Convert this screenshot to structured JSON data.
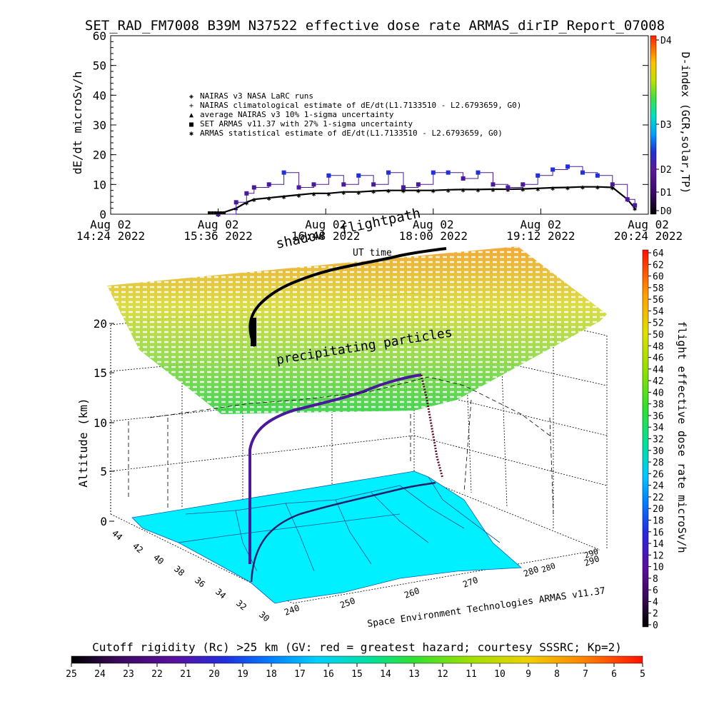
{
  "header": {
    "title": "SET_RAD_FM7008   B39M N37522 effective dose rate ARMAS_dirIP_Report_07008"
  },
  "top_panel": {
    "ylabel": "dE/dt microSv/h",
    "right_label": "D-index (GCR,solar,TP)",
    "yticks": [
      "0",
      "10",
      "20",
      "30",
      "40",
      "50",
      "60"
    ],
    "dindex_ticks": [
      "D0",
      "D1",
      "D2",
      "D3",
      "D4"
    ],
    "legend": [
      {
        "symbol": "diamond",
        "text": "NAIRAS v3 NASA LaRC runs"
      },
      {
        "symbol": "plus",
        "text": "NAIRAS climatological estimate of dE/dt(L1.7133510 - L2.6793659, G0)"
      },
      {
        "symbol": "triangle",
        "text": "average NAIRAS v3 10% 1-sigma uncertainty"
      },
      {
        "symbol": "square",
        "text": "SET ARMAS v11.37 with 27% 1-sigma uncertainty"
      },
      {
        "symbol": "asterisk",
        "text": "ARMAS statistical estimate of dE/dt(L1.7133510 - L2.6793659, G0)"
      }
    ],
    "xticks": [
      {
        "l1": "Aug 02",
        "l2": "14:24 2022"
      },
      {
        "l1": "Aug 02",
        "l2": "15:36 2022"
      },
      {
        "l1": "Aug 02",
        "l2": "16:48 2022"
      },
      {
        "l1": "Aug 02",
        "l2": "18:00 2022"
      },
      {
        "l1": "Aug 02",
        "l2": "19:12 2022"
      },
      {
        "l1": "Aug 02",
        "l2": "20:24 2022"
      }
    ],
    "overlay_labels": {
      "shadow": "shadow",
      "flightpath": "flightpath",
      "ut": "UT time"
    }
  },
  "bottom_panel": {
    "zlabel": "Altitude (km)",
    "zticks": [
      "0",
      "5",
      "10",
      "15",
      "20"
    ],
    "lat_ticks": [
      "44",
      "42",
      "40",
      "38",
      "36",
      "34",
      "32",
      "30"
    ],
    "lon_ticks": [
      "240",
      "250",
      "260",
      "270",
      "280",
      "290"
    ],
    "lon_ticks_back": [
      "280",
      "290"
    ],
    "precip_label": "precipitating particles",
    "credit": "Space Environment Technologies ARMAS v11.37",
    "right_label": "flight effective dose rate microSv/h",
    "right_ticks": [
      "0",
      "2",
      "4",
      "6",
      "8",
      "10",
      "12",
      "14",
      "16",
      "18",
      "20",
      "22",
      "24",
      "26",
      "28",
      "30",
      "32",
      "34",
      "36",
      "38",
      "40",
      "42",
      "44",
      "46",
      "48",
      "50",
      "52",
      "54",
      "56",
      "58",
      "60",
      "62",
      "64"
    ]
  },
  "cutoff_bar": {
    "title": "Cutoff rigidity (Rc) >25 km (GV: red = greatest hazard; courtesy SSSRC; Kp=2)",
    "ticks": [
      "25",
      "24",
      "23",
      "22",
      "21",
      "20",
      "19",
      "18",
      "17",
      "16",
      "15",
      "14",
      "13",
      "12",
      "11",
      "10",
      "9",
      "8",
      "7",
      "6",
      "5"
    ]
  },
  "chart_data": [
    {
      "type": "line",
      "title": "SET_RAD_FM7008   B39M N37522 effective dose rate ARMAS_dirIP_Report_07008",
      "xlabel": "",
      "ylabel": "dE/dt microSv/h",
      "x_start": "2022-08-02 14:24",
      "x_end": "2022-08-02 20:24",
      "ylim": [
        0,
        60
      ],
      "series": [
        {
          "name": "SET ARMAS v11.37 with 27% 1-sigma uncertainty",
          "x": [
            "15:36",
            "15:48",
            "15:55",
            "16:00",
            "16:10",
            "16:20",
            "16:30",
            "16:40",
            "16:50",
            "17:00",
            "17:10",
            "17:20",
            "17:30",
            "17:40",
            "17:50",
            "18:00",
            "18:10",
            "18:20",
            "18:30",
            "18:40",
            "18:50",
            "19:00",
            "19:10",
            "19:20",
            "19:30",
            "19:40",
            "19:50",
            "20:00",
            "20:10",
            "20:15"
          ],
          "y": [
            0,
            4,
            7,
            9,
            10,
            14,
            9,
            10,
            13,
            10,
            13,
            10,
            14,
            9,
            10,
            14,
            14,
            12,
            14,
            10,
            9,
            10,
            13,
            15,
            16,
            14,
            13,
            10,
            5,
            3
          ]
        },
        {
          "name": "ARMAS statistical estimate of dE/dt(L1.7133510 - L2.6793659, G0)",
          "x": [
            "15:36",
            "15:48",
            "15:55",
            "16:00",
            "16:10",
            "16:20",
            "16:30",
            "16:40",
            "16:50",
            "17:00",
            "17:10",
            "17:20",
            "17:30",
            "17:40",
            "17:50",
            "18:00",
            "18:10",
            "18:20",
            "18:30",
            "18:40",
            "18:50",
            "19:00",
            "19:10",
            "19:20",
            "19:30",
            "19:40",
            "19:50",
            "20:00",
            "20:10",
            "20:15"
          ],
          "y": [
            0,
            2,
            4,
            5,
            5.5,
            6,
            6.5,
            7,
            7,
            7.5,
            7.5,
            7.8,
            8,
            8,
            8,
            8,
            8.2,
            8.3,
            8.3,
            8.4,
            8.4,
            8.5,
            8.7,
            8.9,
            9,
            9.2,
            9.2,
            9,
            5,
            2
          ]
        },
        {
          "name": "NAIRAS climatological estimate of dE/dt(L1.7133510 - L2.6793659, G0)",
          "x": [
            "15:36",
            "15:48",
            "15:55",
            "16:00",
            "16:10",
            "16:20",
            "16:30",
            "16:40",
            "16:50",
            "17:00",
            "17:10",
            "17:20",
            "17:30",
            "17:40",
            "17:50",
            "18:00",
            "18:10",
            "18:20",
            "18:30",
            "18:40",
            "18:50",
            "19:00",
            "19:10",
            "19:20",
            "19:30",
            "19:40",
            "19:50",
            "20:00",
            "20:10",
            "20:15"
          ],
          "y": [
            0,
            2,
            4,
            5,
            5.5,
            6,
            6.5,
            7,
            7,
            7.5,
            7.5,
            7.8,
            8,
            8,
            8,
            8,
            8.2,
            8.3,
            8.3,
            8.4,
            8.4,
            8.5,
            8.7,
            8.9,
            9,
            9.2,
            9.2,
            9,
            5,
            2
          ]
        }
      ]
    },
    {
      "type": "scatter",
      "title": "",
      "xlabel": "",
      "ylabel": "Altitude (km)",
      "zlim": [
        0,
        20
      ],
      "xlim": [
        240,
        290
      ],
      "ylim": [
        30,
        44
      ],
      "series": [
        {
          "name": "",
          "lon": [
            242,
            243,
            244,
            246,
            248,
            251,
            254,
            258,
            262,
            266,
            270,
            274,
            276
          ],
          "lat": [
            32.5,
            33.5,
            34.5,
            35.5,
            36.5,
            37.5,
            38.5,
            39.2,
            39.8,
            40.2,
            40.5,
            40.6,
            40.6
          ],
          "alt": [
            0,
            2,
            6,
            10,
            11,
            11.5,
            12,
            12,
            12.2,
            12.5,
            12.6,
            12.6,
            12.6
          ]
        }
      ]
    }
  ]
}
